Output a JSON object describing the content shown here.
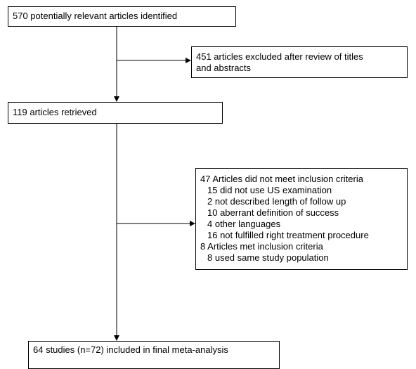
{
  "flowchart": {
    "identified": "570 potentially relevant articles identified",
    "excluded_titles_abstracts": {
      "line1": "451 articles excluded after review of titles",
      "line2": "and abstracts"
    },
    "retrieved": "119 articles retrieved",
    "exclusions": {
      "not_meet": "47 Articles did not meet inclusion criteria",
      "not_meet_reasons": [
        "15 did not use US examination",
        "2 not described length of follow up",
        "10 aberrant definition of success",
        "4 other languages",
        "16 not fulfilled right treatment procedure"
      ],
      "met": "8 Articles met inclusion criteria",
      "met_reasons": [
        "8 used same study population"
      ]
    },
    "included": "64 studies (n=72) included in final meta-analysis"
  },
  "colors": {
    "stroke": "#000000",
    "background": "#ffffff"
  }
}
